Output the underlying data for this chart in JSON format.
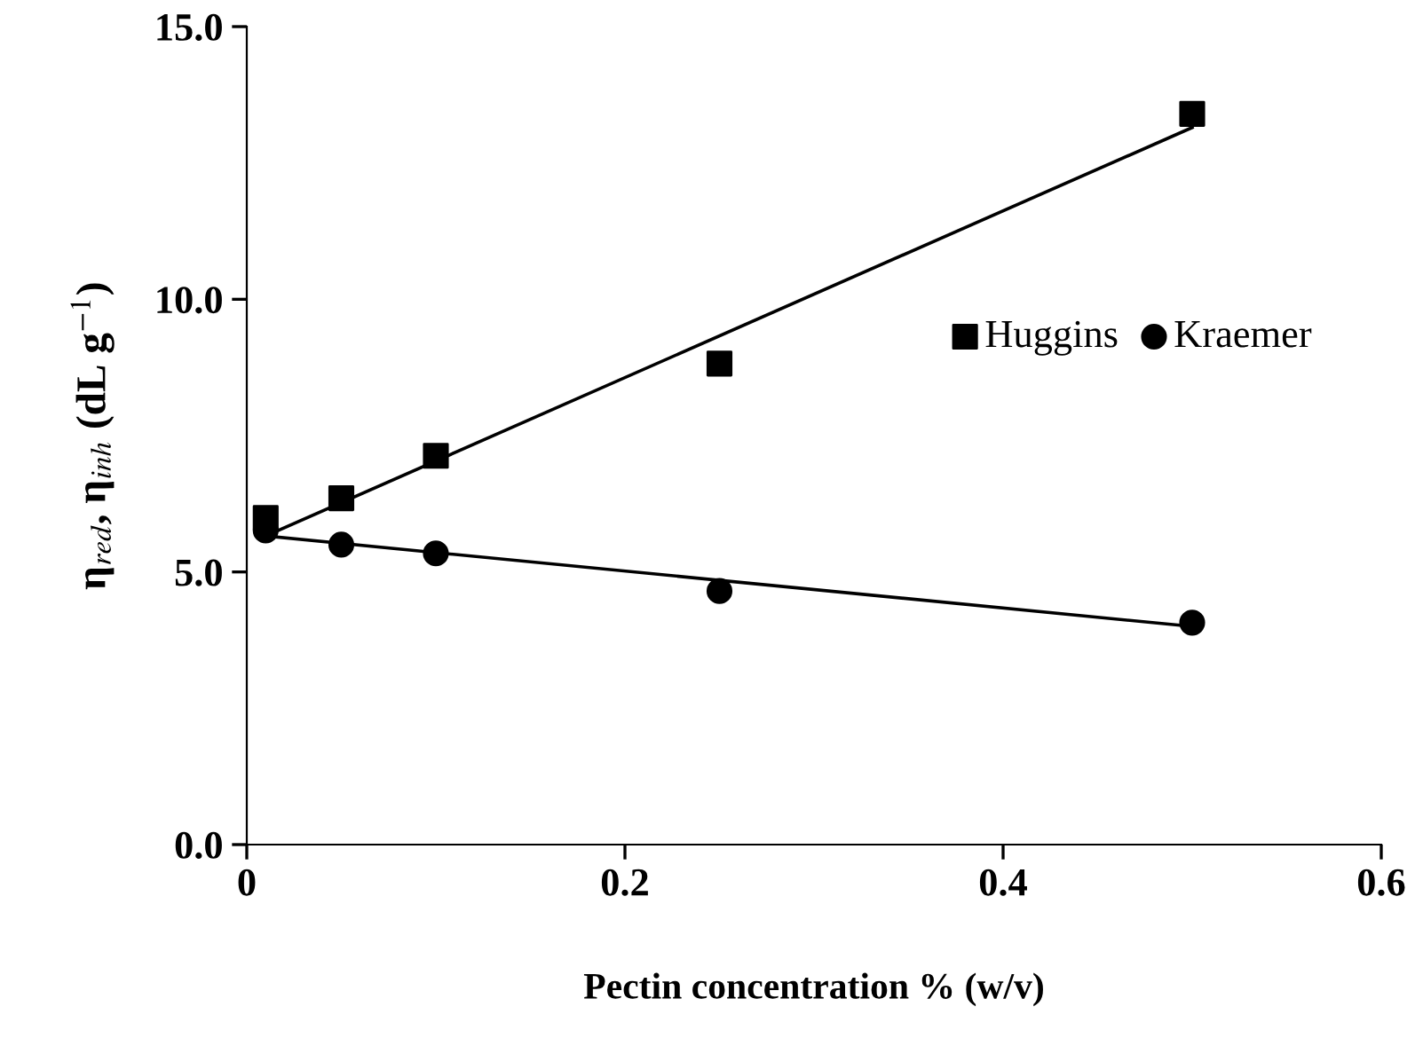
{
  "chart_data": {
    "type": "scatter",
    "xlabel": "Pectin concentration % (w/v)",
    "ylabel": "η$_{red}$, η$_{inh}$ (dL g$^{−1}$)",
    "xlim": [
      0,
      0.6
    ],
    "xticks": [
      0,
      0.2,
      0.4,
      0.6
    ],
    "ylim": [
      0,
      15
    ],
    "yticks": [
      {
        "value": 0,
        "label": "0.0"
      },
      {
        "value": 5,
        "label": "5.0"
      },
      {
        "value": 10,
        "label": "10.0"
      },
      {
        "value": 15,
        "label": "15.0"
      }
    ],
    "grid": false,
    "legend": "right",
    "series": [
      {
        "name": "Huggins",
        "marker": "square",
        "color": "#000000",
        "x": [
          0.01,
          0.05,
          0.1,
          0.25,
          0.5
        ],
        "values": [
          5.99,
          6.35,
          7.13,
          8.82,
          13.4
        ]
      },
      {
        "name": "Kraemer",
        "marker": "circle",
        "color": "#000000",
        "x": [
          0.01,
          0.05,
          0.1,
          0.25,
          0.5
        ],
        "values": [
          5.76,
          5.5,
          5.34,
          4.65,
          4.07
        ]
      },
      {
        "type": "line",
        "marker": "none",
        "line_style": "solid",
        "color": "#000000",
        "x": [
          0.01,
          0.5
        ],
        "values": [
          5.66,
          13.15
        ]
      },
      {
        "type": "line",
        "marker": "none",
        "line_style": "solid",
        "color": "#000000",
        "x": [
          0.01,
          0.5
        ],
        "values": [
          5.66,
          4.0
        ]
      }
    ]
  }
}
